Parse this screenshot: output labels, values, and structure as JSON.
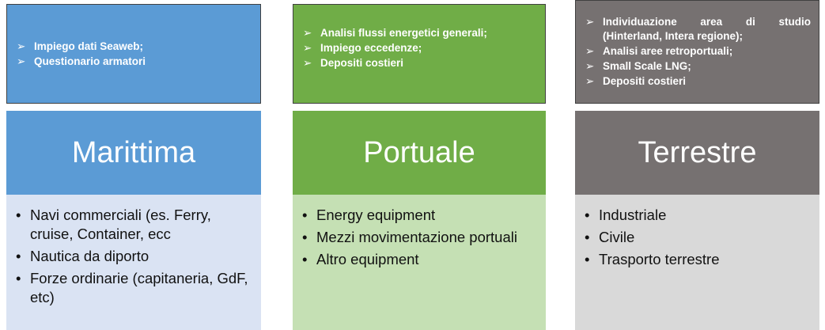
{
  "columns": [
    {
      "notes": [
        "Impiego dati Seaweb;",
        "Questionario armatori"
      ],
      "title": "Marittima",
      "items": [
        "Navi commerciali (es. Ferry, cruise, Container, ecc",
        "Nautica da diporto",
        "Forze ordinarie (capitaneria, GdF, etc)"
      ]
    },
    {
      "notes": [
        "Analisi flussi energetici generali;",
        "Impiego eccedenze;",
        "Depositi costieri"
      ],
      "title": "Portuale",
      "items": [
        "Energy equipment",
        "Mezzi movimentazione portuali",
        "Altro equipment"
      ]
    },
    {
      "notes": [
        "Individuazione area di studio (Hinterland, Intera regione);",
        "Analisi aree retroportuali;",
        "Small Scale LNG;",
        "Depositi costieri"
      ],
      "title": "Terrestre",
      "items": [
        "Industriale",
        "Civile",
        "Trasporto terrestre"
      ]
    }
  ]
}
